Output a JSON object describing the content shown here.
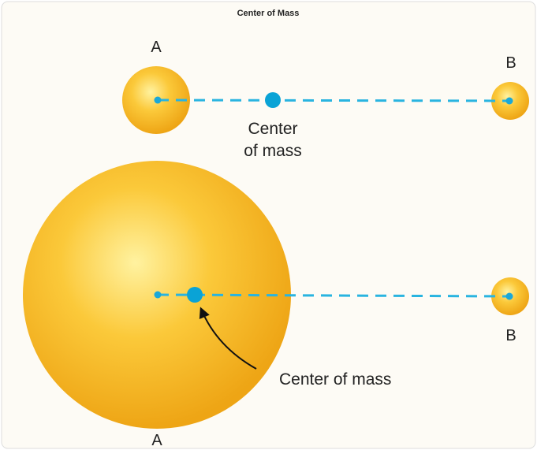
{
  "title": "Center of Mass",
  "top": {
    "label_a": "A",
    "label_b": "B",
    "center_label": [
      "Center",
      "of mass"
    ]
  },
  "bottom": {
    "label_a": "A",
    "label_b": "B",
    "center_label": "Center of mass"
  }
}
